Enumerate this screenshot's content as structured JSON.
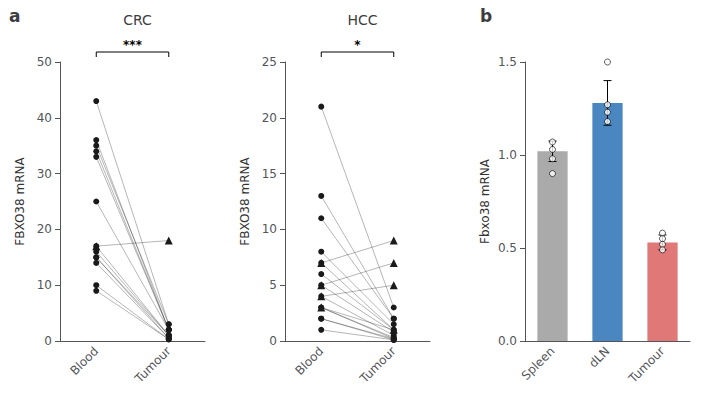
{
  "chart_data": [
    {
      "type": "paired",
      "title": "CRC",
      "panel_label": "a",
      "ylabel": "FBXO38 mRNA",
      "categories": [
        "Blood",
        "Tumour"
      ],
      "ylim": [
        0,
        50
      ],
      "yticks": [
        0,
        10,
        20,
        30,
        40,
        50
      ],
      "grid": false,
      "annotation": "***",
      "series": [
        {
          "marker": "circle",
          "color": "#1a1a1a",
          "values": [
            [
              43,
              3
            ],
            [
              36,
              2
            ],
            [
              35,
              3
            ],
            [
              34,
              2
            ],
            [
              33,
              2
            ],
            [
              25,
              2
            ],
            [
              17,
              1
            ],
            [
              16,
              1
            ],
            [
              15,
              1
            ],
            [
              15,
              0.5
            ],
            [
              14,
              0.5
            ],
            [
              10,
              0.3
            ],
            [
              9,
              0.3
            ]
          ]
        },
        {
          "marker": "triangle",
          "color": "#1a1a1a",
          "values": [
            [
              17,
              18
            ]
          ]
        }
      ]
    },
    {
      "type": "paired",
      "title": "HCC",
      "ylabel": "FBXO38 mRNA",
      "categories": [
        "Blood",
        "Tumour"
      ],
      "ylim": [
        0,
        25
      ],
      "yticks": [
        0,
        5,
        10,
        15,
        20,
        25
      ],
      "grid": false,
      "annotation": "*",
      "series": [
        {
          "marker": "circle",
          "color": "#1a1a1a",
          "values": [
            [
              21,
              3
            ],
            [
              13,
              2
            ],
            [
              11,
              2
            ],
            [
              8,
              1.5
            ],
            [
              7,
              1
            ],
            [
              6,
              1
            ],
            [
              5,
              0.8
            ],
            [
              4,
              0.5
            ],
            [
              3,
              0.3
            ],
            [
              3,
              0.2
            ],
            [
              2,
              0.2
            ],
            [
              2,
              0.1
            ],
            [
              1,
              0.1
            ]
          ]
        },
        {
          "marker": "triangle",
          "color": "#1a1a1a",
          "values": [
            [
              7,
              9
            ],
            [
              5,
              7
            ],
            [
              4,
              5
            ],
            [
              3,
              1
            ]
          ]
        }
      ]
    },
    {
      "type": "bar",
      "panel_label": "b",
      "ylabel": "Fbxo38 mRNA",
      "categories": [
        "Spleen",
        "dLN",
        "Tumour"
      ],
      "values": [
        1.02,
        1.28,
        0.53
      ],
      "errors": [
        0.055,
        0.12,
        0.04
      ],
      "colors": [
        "#aaaaaa",
        "#4a86c0",
        "#e07878"
      ],
      "dots": [
        [
          1.07,
          1.03,
          0.98,
          0.9
        ],
        [
          1.5,
          1.27,
          1.23,
          1.18
        ],
        [
          0.58,
          0.55,
          0.52,
          0.49
        ]
      ],
      "ylim": [
        0,
        1.5
      ],
      "yticks": [
        {
          "value": 0,
          "label": "0.0"
        },
        0.5,
        {
          "value": 1,
          "label": "1.0"
        },
        1.5
      ],
      "grid": false
    }
  ]
}
